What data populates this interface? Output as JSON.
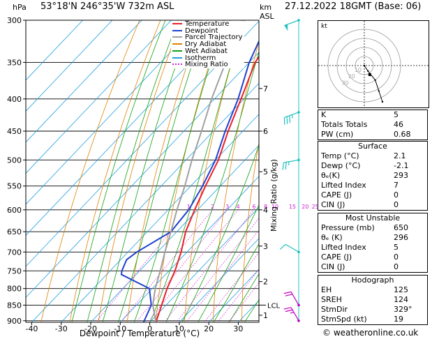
{
  "header": {
    "location": "53°18'N  246°35'W  732m  ASL",
    "datetime": "27.12.2022  18GMT  (Base: 06)",
    "hpa_label": "hPa",
    "km_label": "km",
    "asl_label": "ASL",
    "kt_label": "kt",
    "mixing_label": "Mixing Ratio (g/kg)",
    "xlabel": "Dewpoint / Temperature (°C)"
  },
  "legend": [
    {
      "name": "Temperature",
      "color": "#e8202a"
    },
    {
      "name": "Dewpoint",
      "color": "#2040d0"
    },
    {
      "name": "Parcel Trajectory",
      "color": "#a0a0a0"
    },
    {
      "name": "Dry Adiabat",
      "color": "#e08000"
    },
    {
      "name": "Wet Adiabat",
      "color": "#10a010"
    },
    {
      "name": "Isotherm",
      "color": "#20a0e0"
    },
    {
      "name": "Mixing Ratio",
      "color": "#d020d0"
    }
  ],
  "chart_data": {
    "type": "line",
    "title": "",
    "xlabel": "Dewpoint / Temperature (°C)",
    "ylabel": "hPa",
    "xlim": [
      -42,
      37
    ],
    "ylim": [
      905,
      300
    ],
    "x_ticks": [
      -40,
      -30,
      -20,
      -10,
      0,
      10,
      20,
      30
    ],
    "p_ticks": [
      300,
      350,
      400,
      450,
      500,
      550,
      600,
      650,
      700,
      750,
      800,
      850,
      900
    ],
    "km_ticks": [
      {
        "label": "1",
        "p": 882
      },
      {
        "label": "2",
        "p": 780
      },
      {
        "label": "3",
        "p": 685
      },
      {
        "label": "4",
        "p": 600
      },
      {
        "label": "5",
        "p": 522
      },
      {
        "label": "6",
        "p": 450
      },
      {
        "label": "7",
        "p": 385
      }
    ],
    "lcl": {
      "label": "LCL",
      "p": 850
    },
    "mixing_ratio_labels": [
      "1",
      "2",
      "3",
      "4",
      "6",
      "8",
      "10",
      "15",
      "20",
      "25"
    ],
    "mixing_ratio_values": [
      1,
      2,
      3,
      4,
      6,
      8,
      10,
      15,
      20,
      25
    ],
    "series": [
      {
        "name": "Temperature",
        "color": "#e8202a",
        "points": [
          [
            905,
            2.1
          ],
          [
            850,
            -1.5
          ],
          [
            800,
            -5
          ],
          [
            750,
            -8
          ],
          [
            700,
            -12
          ],
          [
            650,
            -17
          ],
          [
            600,
            -21
          ],
          [
            550,
            -25
          ],
          [
            500,
            -29
          ],
          [
            450,
            -35
          ],
          [
            400,
            -41
          ],
          [
            350,
            -48
          ],
          [
            300,
            -52
          ]
        ]
      },
      {
        "name": "Dewpoint",
        "color": "#2040d0",
        "points": [
          [
            905,
            -2.1
          ],
          [
            850,
            -5
          ],
          [
            800,
            -11
          ],
          [
            760,
            -25
          ],
          [
            750,
            -26
          ],
          [
            720,
            -28
          ],
          [
            700,
            -27
          ],
          [
            650,
            -22
          ],
          [
            600,
            -23
          ],
          [
            550,
            -26
          ],
          [
            500,
            -30
          ],
          [
            450,
            -36
          ],
          [
            400,
            -42
          ],
          [
            350,
            -50
          ],
          [
            300,
            -57
          ]
        ]
      },
      {
        "name": "Parcel Trajectory",
        "color": "#a0a0a0",
        "points": [
          [
            905,
            2.1
          ],
          [
            850,
            -4.5
          ],
          [
            800,
            -9
          ],
          [
            750,
            -13
          ],
          [
            700,
            -17.5
          ],
          [
            650,
            -22
          ],
          [
            600,
            -27
          ],
          [
            550,
            -32
          ],
          [
            500,
            -38
          ],
          [
            450,
            -44
          ],
          [
            400,
            -51
          ],
          [
            350,
            -58
          ],
          [
            300,
            -66
          ]
        ]
      }
    ]
  },
  "wind_barbs": [
    {
      "p": 300,
      "dir": 250,
      "kt": 50
    },
    {
      "p": 420,
      "dir": 250,
      "kt": 35
    },
    {
      "p": 500,
      "dir": 260,
      "kt": 25
    },
    {
      "p": 700,
      "dir": 300,
      "kt": 10
    },
    {
      "p": 850,
      "dir": 330,
      "kt": 20
    },
    {
      "p": 900,
      "dir": 330,
      "kt": 25
    }
  ],
  "hodograph": {
    "rings_kt": [
      10,
      20,
      30,
      40
    ],
    "ring_labels": [
      "10",
      "20",
      "30"
    ],
    "points": [
      [
        0,
        0
      ],
      [
        2,
        -3
      ],
      [
        6,
        -8
      ],
      [
        8,
        -14
      ],
      [
        10,
        -20
      ]
    ],
    "storm": [
      3,
      -5
    ]
  },
  "indices": {
    "k_label": "K",
    "k": "5",
    "tt_label": "Totals Totals",
    "tt": "46",
    "pw_label": "PW (cm)",
    "pw": "0.68"
  },
  "surface": {
    "title": "Surface",
    "rows": [
      {
        "label": "Temp (°C)",
        "value": "2.1"
      },
      {
        "label": "Dewp (°C)",
        "value": "-2.1"
      },
      {
        "label": "θₑ(K)",
        "value": "293"
      },
      {
        "label": "Lifted Index",
        "value": "7"
      },
      {
        "label": "CAPE (J)",
        "value": "0"
      },
      {
        "label": "CIN (J)",
        "value": "0"
      }
    ]
  },
  "most_unstable": {
    "title": "Most Unstable",
    "rows": [
      {
        "label": "Pressure (mb)",
        "value": "650"
      },
      {
        "label": "θₑ (K)",
        "value": "296"
      },
      {
        "label": "Lifted Index",
        "value": "5"
      },
      {
        "label": "CAPE (J)",
        "value": "0"
      },
      {
        "label": "CIN (J)",
        "value": "0"
      }
    ]
  },
  "hodograph_params": {
    "title": "Hodograph",
    "rows": [
      {
        "label": "EH",
        "value": "125"
      },
      {
        "label": "SREH",
        "value": "124"
      },
      {
        "label": "StmDir",
        "value": "329°"
      },
      {
        "label": "StmSpd (kt)",
        "value": "19"
      }
    ]
  },
  "copyright": "© weatheronline.co.uk"
}
